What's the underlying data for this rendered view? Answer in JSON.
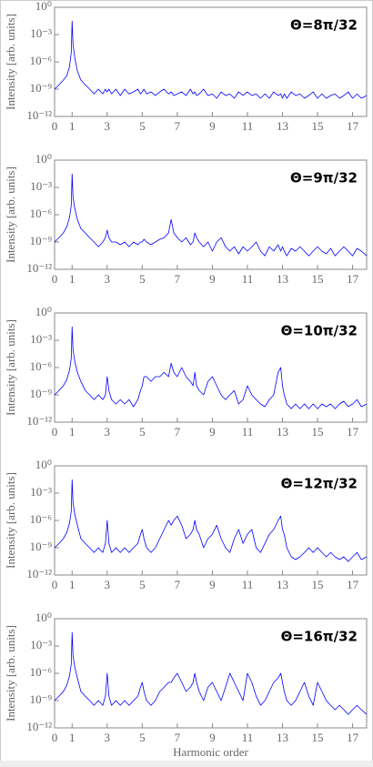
{
  "chart_data": [
    {
      "type": "line",
      "annotation": "Θ=8π/32",
      "y_label": "Intensity [arb. units]",
      "ylog": true,
      "ylim": [
        1e-12,
        1
      ],
      "xlim": [
        0,
        17.8
      ],
      "yticks": [
        {
          "value": 1,
          "label": "10⁰"
        },
        {
          "value": 0.001,
          "label": "10⁻³"
        },
        {
          "value": 1e-06,
          "label": "10⁻⁶"
        },
        {
          "value": 1e-09,
          "label": "10⁻⁹"
        },
        {
          "value": 1e-12,
          "label": "10⁻¹²"
        }
      ],
      "xticks": [
        0,
        1,
        3,
        5,
        7,
        9,
        11,
        13,
        15,
        17
      ],
      "color": "#0000ff",
      "x": [
        0,
        0.25,
        0.5,
        0.7,
        0.85,
        0.95,
        1,
        1.05,
        1.15,
        1.3,
        1.5,
        1.75,
        2,
        2.25,
        2.5,
        2.75,
        2.9,
        3,
        3.1,
        3.25,
        3.5,
        3.75,
        4,
        4.25,
        4.5,
        4.75,
        4.9,
        5,
        5.1,
        5.25,
        5.5,
        5.75,
        6,
        6.25,
        6.5,
        6.65,
        6.8,
        7,
        7.25,
        7.5,
        7.75,
        7.9,
        8,
        8.1,
        8.25,
        8.5,
        8.75,
        9,
        9.25,
        9.5,
        9.75,
        10,
        10.25,
        10.5,
        10.75,
        11,
        11.25,
        11.5,
        11.75,
        12,
        12.25,
        12.5,
        12.75,
        12.9,
        13,
        13.1,
        13.25,
        13.5,
        13.75,
        14,
        14.25,
        14.5,
        14.75,
        15,
        15.25,
        15.5,
        15.75,
        16,
        16.25,
        16.5,
        16.75,
        17,
        17.25,
        17.5,
        17.8
      ],
      "values": [
        1e-09,
        3e-09,
        1e-08,
        3e-08,
        3e-07,
        1e-05,
        0.03,
        0.0001,
        3e-06,
        1e-07,
        1e-08,
        3e-09,
        1e-09,
        3e-10,
        1e-09,
        3e-10,
        1e-09,
        5e-10,
        1e-09,
        3e-10,
        1e-09,
        2e-10,
        1e-09,
        3e-10,
        5e-10,
        1e-09,
        3e-10,
        5e-10,
        1e-09,
        3e-10,
        5e-10,
        2e-10,
        5e-10,
        1e-09,
        3e-10,
        5e-10,
        2e-10,
        3e-10,
        5e-10,
        2e-10,
        1e-09,
        3e-10,
        5e-10,
        2e-10,
        3e-10,
        1e-09,
        2e-10,
        3e-10,
        1e-10,
        5e-10,
        2e-10,
        3e-10,
        1e-10,
        5e-10,
        2e-10,
        5e-10,
        2e-10,
        3e-10,
        1e-10,
        3e-10,
        1e-10,
        5e-10,
        2e-10,
        3e-10,
        1e-10,
        3e-10,
        1e-10,
        5e-10,
        2e-10,
        3e-10,
        1e-10,
        2e-10,
        5e-10,
        1e-10,
        3e-10,
        1e-10,
        2e-10,
        3e-10,
        1e-10,
        2e-10,
        5e-10,
        1e-10,
        3e-10,
        1e-10,
        2e-10
      ]
    },
    {
      "type": "line",
      "annotation": "Θ=9π/32",
      "y_label": "Intensity [arb. units]",
      "ylog": true,
      "ylim": [
        1e-12,
        1
      ],
      "xlim": [
        0,
        17.8
      ],
      "yticks": [
        {
          "value": 1,
          "label": "10⁰"
        },
        {
          "value": 0.001,
          "label": "10⁻³"
        },
        {
          "value": 1e-06,
          "label": "10⁻⁶"
        },
        {
          "value": 1e-09,
          "label": "10⁻⁹"
        },
        {
          "value": 1e-12,
          "label": "10⁻¹²"
        }
      ],
      "xticks": [
        0,
        1,
        3,
        5,
        7,
        9,
        11,
        13,
        15,
        17
      ],
      "color": "#0000ff",
      "x": [
        0,
        0.25,
        0.5,
        0.7,
        0.85,
        0.95,
        1,
        1.05,
        1.15,
        1.3,
        1.5,
        1.75,
        2,
        2.25,
        2.5,
        2.75,
        2.9,
        3,
        3.1,
        3.25,
        3.5,
        3.75,
        4,
        4.25,
        4.5,
        4.75,
        4.9,
        5,
        5.1,
        5.25,
        5.5,
        5.75,
        6,
        6.25,
        6.5,
        6.65,
        6.8,
        7,
        7.25,
        7.5,
        7.75,
        7.9,
        8,
        8.1,
        8.25,
        8.5,
        8.75,
        9,
        9.25,
        9.5,
        9.75,
        10,
        10.25,
        10.5,
        10.75,
        11,
        11.25,
        11.5,
        11.75,
        12,
        12.25,
        12.5,
        12.75,
        12.9,
        13,
        13.1,
        13.25,
        13.5,
        13.75,
        14,
        14.25,
        14.5,
        14.75,
        15,
        15.25,
        15.5,
        15.75,
        16,
        16.25,
        16.5,
        16.75,
        17,
        17.25,
        17.5,
        17.8
      ],
      "values": [
        1e-09,
        3e-09,
        1e-08,
        5e-08,
        5e-07,
        1e-05,
        0.03,
        0.0001,
        5e-06,
        3e-07,
        3e-08,
        1e-08,
        3e-09,
        1e-09,
        3e-10,
        1e-09,
        3e-09,
        2e-08,
        3e-09,
        1e-09,
        1e-09,
        5e-10,
        1e-09,
        3e-10,
        1e-09,
        5e-10,
        1e-09,
        1e-09,
        2e-09,
        1e-09,
        5e-10,
        1e-09,
        2e-09,
        3e-09,
        1e-08,
        3e-07,
        1e-08,
        3e-09,
        1e-09,
        3e-09,
        5e-10,
        1e-09,
        1e-08,
        3e-09,
        1e-09,
        3e-10,
        1e-09,
        1e-10,
        1e-09,
        3e-09,
        3e-10,
        1e-10,
        3e-10,
        5e-11,
        3e-10,
        1e-10,
        3e-10,
        1e-09,
        1e-10,
        3e-11,
        3e-10,
        1e-10,
        5e-10,
        1e-10,
        3e-10,
        1e-10,
        3e-11,
        2e-10,
        1e-10,
        3e-10,
        1e-10,
        3e-11,
        1e-10,
        3e-10,
        1e-10,
        5e-11,
        2e-10,
        3e-11,
        1e-10,
        3e-10,
        1e-10,
        3e-11,
        2e-10,
        1e-10,
        3e-11
      ]
    },
    {
      "type": "line",
      "annotation": "Θ=10π/32",
      "y_label": "Intensity [arb. units]",
      "ylog": true,
      "ylim": [
        1e-12,
        1
      ],
      "xlim": [
        0,
        17.8
      ],
      "yticks": [
        {
          "value": 1,
          "label": "10⁰"
        },
        {
          "value": 0.001,
          "label": "10⁻³"
        },
        {
          "value": 1e-06,
          "label": "10⁻⁶"
        },
        {
          "value": 1e-09,
          "label": "10⁻⁹"
        },
        {
          "value": 1e-12,
          "label": "10⁻¹²"
        }
      ],
      "xticks": [
        0,
        1,
        3,
        5,
        7,
        9,
        11,
        13,
        15,
        17
      ],
      "color": "#0000ff",
      "x": [
        0,
        0.25,
        0.5,
        0.7,
        0.85,
        0.95,
        1,
        1.05,
        1.15,
        1.3,
        1.5,
        1.75,
        2,
        2.25,
        2.5,
        2.75,
        2.9,
        3,
        3.1,
        3.25,
        3.5,
        3.75,
        4,
        4.25,
        4.5,
        4.75,
        4.9,
        5,
        5.1,
        5.25,
        5.5,
        5.75,
        6,
        6.25,
        6.5,
        6.65,
        6.8,
        7,
        7.25,
        7.5,
        7.75,
        7.9,
        8,
        8.1,
        8.25,
        8.5,
        8.75,
        9,
        9.25,
        9.5,
        9.75,
        10,
        10.25,
        10.5,
        10.75,
        11,
        11.25,
        11.5,
        11.75,
        12,
        12.25,
        12.5,
        12.75,
        12.9,
        13,
        13.1,
        13.25,
        13.5,
        13.75,
        14,
        14.25,
        14.5,
        14.75,
        15,
        15.25,
        15.5,
        15.75,
        16,
        16.25,
        16.5,
        16.75,
        17,
        17.25,
        17.5,
        17.8
      ],
      "values": [
        1e-09,
        3e-09,
        1e-08,
        5e-08,
        5e-07,
        1e-05,
        0.03,
        0.0001,
        5e-06,
        3e-07,
        3e-08,
        3e-09,
        1e-09,
        3e-10,
        1e-09,
        3e-10,
        1e-09,
        1e-07,
        3e-09,
        3e-10,
        1e-10,
        3e-10,
        1e-10,
        3e-10,
        5e-11,
        3e-10,
        3e-09,
        1e-08,
        1e-07,
        1e-07,
        3e-08,
        1e-07,
        1e-07,
        3e-07,
        1e-07,
        3e-06,
        3e-07,
        1e-07,
        1e-06,
        1e-07,
        3e-08,
        1e-08,
        3e-07,
        1e-08,
        3e-09,
        1e-09,
        3e-08,
        1e-07,
        1e-08,
        1e-09,
        3e-10,
        1e-09,
        3e-09,
        1e-10,
        3e-10,
        1e-08,
        1e-09,
        3e-10,
        1e-10,
        5e-11,
        3e-10,
        1e-09,
        3e-07,
        1e-06,
        1e-08,
        1e-09,
        1e-10,
        3e-11,
        1e-10,
        3e-11,
        1e-10,
        3e-11,
        1e-10,
        3e-11,
        1e-10,
        5e-11,
        1e-10,
        3e-11,
        1e-10,
        2e-10,
        5e-11,
        1e-10,
        3e-10,
        5e-11,
        1e-10
      ]
    },
    {
      "type": "line",
      "annotation": "Θ=12π/32",
      "y_label": "Intensity [arb. units]",
      "ylog": true,
      "ylim": [
        1e-12,
        1
      ],
      "xlim": [
        0,
        17.8
      ],
      "yticks": [
        {
          "value": 1,
          "label": "10⁰"
        },
        {
          "value": 0.001,
          "label": "10⁻³"
        },
        {
          "value": 1e-06,
          "label": "10⁻⁶"
        },
        {
          "value": 1e-09,
          "label": "10⁻⁹"
        },
        {
          "value": 1e-12,
          "label": "10⁻¹²"
        }
      ],
      "xticks": [
        0,
        1,
        3,
        5,
        7,
        9,
        11,
        13,
        15,
        17
      ],
      "color": "#0000ff",
      "x": [
        0,
        0.25,
        0.5,
        0.7,
        0.85,
        0.95,
        1,
        1.05,
        1.15,
        1.3,
        1.5,
        1.75,
        2,
        2.25,
        2.5,
        2.75,
        2.9,
        3,
        3.1,
        3.25,
        3.5,
        3.75,
        4,
        4.25,
        4.5,
        4.75,
        4.9,
        5,
        5.1,
        5.25,
        5.5,
        5.75,
        6,
        6.25,
        6.5,
        6.65,
        6.8,
        7,
        7.25,
        7.5,
        7.75,
        7.9,
        8,
        8.1,
        8.25,
        8.5,
        8.75,
        9,
        9.25,
        9.5,
        9.75,
        10,
        10.25,
        10.5,
        10.75,
        11,
        11.25,
        11.5,
        11.75,
        12,
        12.25,
        12.5,
        12.75,
        12.9,
        13,
        13.1,
        13.25,
        13.5,
        13.75,
        14,
        14.25,
        14.5,
        14.75,
        15,
        15.25,
        15.5,
        15.75,
        16,
        16.25,
        16.5,
        16.75,
        17,
        17.25,
        17.5,
        17.8
      ],
      "values": [
        1e-09,
        3e-09,
        1e-08,
        5e-08,
        5e-07,
        1e-05,
        0.03,
        0.0001,
        5e-06,
        3e-07,
        1e-08,
        3e-09,
        1e-09,
        3e-10,
        1e-09,
        3e-10,
        3e-09,
        1e-06,
        3e-09,
        3e-10,
        1e-09,
        3e-10,
        1e-09,
        3e-10,
        1e-09,
        3e-09,
        3e-08,
        1e-07,
        1e-08,
        1e-09,
        3e-10,
        1e-09,
        1e-08,
        1e-07,
        1e-06,
        3e-07,
        1e-06,
        3e-06,
        3e-07,
        1e-08,
        3e-08,
        1e-07,
        1e-06,
        1e-07,
        3e-08,
        1e-09,
        1e-08,
        3e-08,
        3e-07,
        1e-08,
        1e-09,
        3e-10,
        1e-08,
        1e-07,
        3e-09,
        3e-08,
        1e-07,
        1e-09,
        3e-10,
        3e-09,
        3e-08,
        1e-07,
        1e-06,
        3e-06,
        1e-07,
        3e-08,
        1e-09,
        1e-10,
        5e-11,
        1e-10,
        3e-10,
        1e-09,
        3e-10,
        1e-09,
        3e-10,
        1e-10,
        3e-10,
        1e-10,
        5e-11,
        1e-10,
        3e-11,
        1e-10,
        3e-10,
        5e-11,
        1e-10
      ]
    },
    {
      "type": "line",
      "annotation": "Θ=16π/32",
      "y_label": "Intensity [arb. units]",
      "x_label": "Harmonic order",
      "ylog": true,
      "ylim": [
        1e-12,
        1
      ],
      "xlim": [
        0,
        17.8
      ],
      "yticks": [
        {
          "value": 1,
          "label": "10⁰"
        },
        {
          "value": 0.001,
          "label": "10⁻³"
        },
        {
          "value": 1e-06,
          "label": "10⁻⁶"
        },
        {
          "value": 1e-09,
          "label": "10⁻⁹"
        },
        {
          "value": 1e-12,
          "label": "10⁻¹²"
        }
      ],
      "xticks": [
        0,
        1,
        3,
        5,
        7,
        9,
        11,
        13,
        15,
        17
      ],
      "color": "#0000ff",
      "x": [
        0,
        0.25,
        0.5,
        0.7,
        0.85,
        0.95,
        1,
        1.05,
        1.15,
        1.3,
        1.5,
        1.75,
        2,
        2.25,
        2.5,
        2.75,
        2.9,
        3,
        3.1,
        3.25,
        3.5,
        3.75,
        4,
        4.25,
        4.5,
        4.75,
        4.9,
        5,
        5.1,
        5.25,
        5.5,
        5.75,
        6,
        6.25,
        6.5,
        6.65,
        6.8,
        7,
        7.25,
        7.5,
        7.75,
        7.9,
        8,
        8.1,
        8.25,
        8.5,
        8.75,
        9,
        9.25,
        9.5,
        9.75,
        10,
        10.25,
        10.5,
        10.75,
        11,
        11.25,
        11.5,
        11.75,
        12,
        12.25,
        12.5,
        12.75,
        12.9,
        13,
        13.1,
        13.25,
        13.5,
        13.75,
        14,
        14.25,
        14.5,
        14.75,
        15,
        15.25,
        15.5,
        15.75,
        16,
        16.25,
        16.5,
        16.75,
        17,
        17.25,
        17.5,
        17.8
      ],
      "values": [
        1e-09,
        3e-09,
        1e-08,
        5e-08,
        5e-07,
        1e-05,
        0.03,
        0.0001,
        5e-06,
        3e-07,
        1e-08,
        3e-09,
        1e-09,
        3e-10,
        1e-09,
        3e-10,
        3e-09,
        1e-06,
        3e-09,
        3e-10,
        1e-09,
        3e-10,
        1e-09,
        3e-10,
        1e-09,
        3e-09,
        3e-08,
        1e-07,
        1e-08,
        1e-09,
        3e-10,
        1e-09,
        1e-08,
        3e-08,
        1e-07,
        1e-07,
        3e-07,
        1e-06,
        1e-07,
        1e-08,
        3e-08,
        1e-07,
        1e-06,
        1e-07,
        1e-08,
        1e-09,
        3e-08,
        1e-07,
        1e-08,
        1e-09,
        3e-08,
        1e-06,
        1e-07,
        1e-08,
        1e-09,
        1e-06,
        1e-07,
        3e-09,
        3e-10,
        1e-09,
        1e-08,
        1e-07,
        3e-07,
        1e-06,
        1e-07,
        1e-08,
        1e-09,
        3e-10,
        1e-09,
        1e-08,
        1e-07,
        3e-09,
        3e-10,
        1e-07,
        1e-08,
        1e-09,
        3e-10,
        1e-10,
        3e-10,
        1e-10,
        3e-11,
        1e-10,
        3e-10,
        1e-10,
        3e-11
      ]
    }
  ]
}
